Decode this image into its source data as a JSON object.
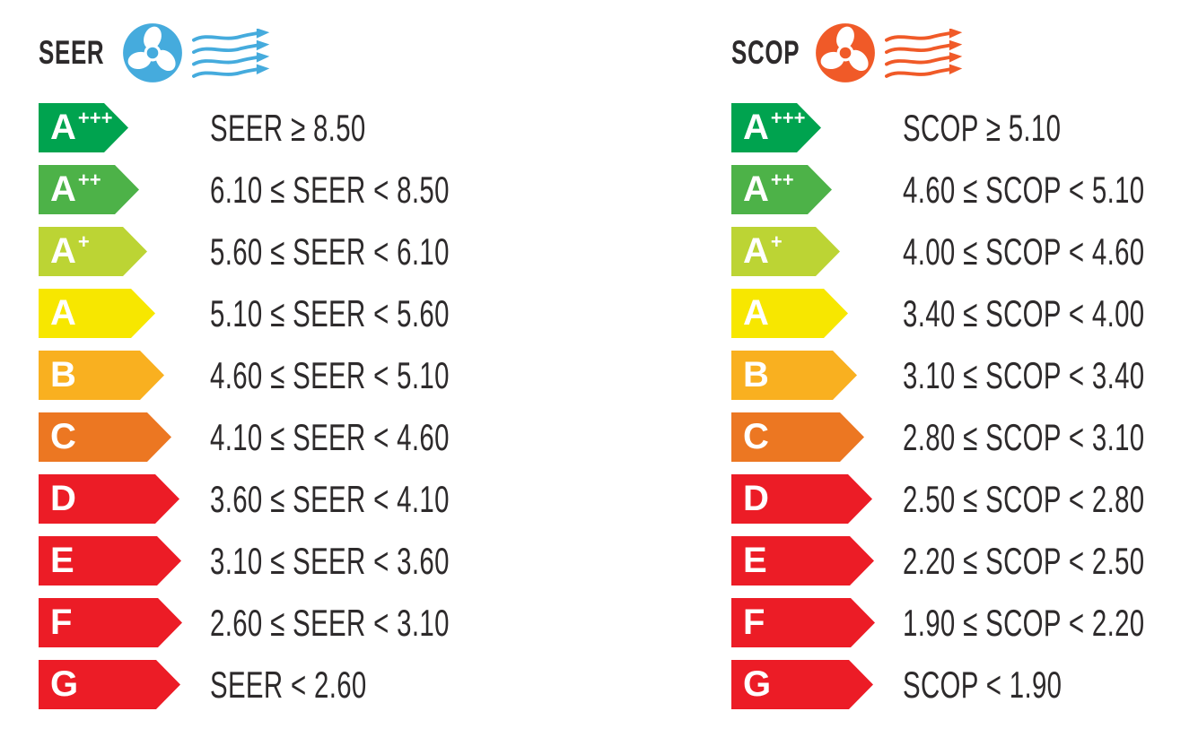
{
  "page": {
    "background": "#FFFFFF"
  },
  "panels": [
    {
      "id": "seer",
      "title": "SEER",
      "icon": "fan-icon",
      "accent_color": "#45ABDD",
      "rows": [
        {
          "grade": "A",
          "sup": "+++",
          "color": "#00A34F",
          "range": "SEER ≥ 8.50",
          "arrow_width": 100
        },
        {
          "grade": "A",
          "sup": "++",
          "color": "#4DB248",
          "range": "6.10 ≤ SEER < 8.50",
          "arrow_width": 112
        },
        {
          "grade": "A",
          "sup": "+",
          "color": "#BCD434",
          "range": "5.60 ≤ SEER < 6.10",
          "arrow_width": 121
        },
        {
          "grade": "A",
          "sup": "",
          "color": "#F7E700",
          "range": "5.10 ≤ SEER < 5.60",
          "arrow_width": 130
        },
        {
          "grade": "B",
          "sup": "",
          "color": "#F9B020",
          "range": "4.60 ≤ SEER < 5.10",
          "arrow_width": 140
        },
        {
          "grade": "C",
          "sup": "",
          "color": "#EC7722",
          "range": "4.10 ≤ SEER < 4.60",
          "arrow_width": 148
        },
        {
          "grade": "D",
          "sup": "",
          "color": "#EC1C26",
          "range": "3.60 ≤ SEER < 4.10",
          "arrow_width": 157
        },
        {
          "grade": "E",
          "sup": "",
          "color": "#EC1C26",
          "range": "3.10 ≤ SEER < 3.60",
          "arrow_width": 159
        },
        {
          "grade": "F",
          "sup": "",
          "color": "#EC1C26",
          "range": "2.60 ≤ SEER < 3.10",
          "arrow_width": 160
        },
        {
          "grade": "G",
          "sup": "",
          "color": "#EC1C26",
          "range": "SEER < 2.60",
          "arrow_width": 158
        }
      ]
    },
    {
      "id": "scop",
      "title": "SCOP",
      "icon": "fan-icon",
      "accent_color": "#F05A28",
      "rows": [
        {
          "grade": "A",
          "sup": "+++",
          "color": "#00A34F",
          "range": "SCOP ≥ 5.10",
          "arrow_width": 100
        },
        {
          "grade": "A",
          "sup": "++",
          "color": "#4DB248",
          "range": "4.60 ≤ SCOP < 5.10",
          "arrow_width": 112
        },
        {
          "grade": "A",
          "sup": "+",
          "color": "#BCD434",
          "range": "4.00 ≤ SCOP < 4.60",
          "arrow_width": 121
        },
        {
          "grade": "A",
          "sup": "",
          "color": "#F7E700",
          "range": "3.40 ≤ SCOP < 4.00",
          "arrow_width": 130
        },
        {
          "grade": "B",
          "sup": "",
          "color": "#F9B020",
          "range": "3.10 ≤ SCOP < 3.40",
          "arrow_width": 140
        },
        {
          "grade": "C",
          "sup": "",
          "color": "#EC7722",
          "range": "2.80 ≤ SCOP < 3.10",
          "arrow_width": 148
        },
        {
          "grade": "D",
          "sup": "",
          "color": "#EC1C26",
          "range": "2.50 ≤ SCOP < 2.80",
          "arrow_width": 157
        },
        {
          "grade": "E",
          "sup": "",
          "color": "#EC1C26",
          "range": "2.20 ≤ SCOP < 2.50",
          "arrow_width": 159
        },
        {
          "grade": "F",
          "sup": "",
          "color": "#EC1C26",
          "range": "1.90 ≤ SCOP < 2.20",
          "arrow_width": 160
        },
        {
          "grade": "G",
          "sup": "",
          "color": "#EC1C26",
          "range": "SCOP < 1.90",
          "arrow_width": 158
        }
      ]
    }
  ]
}
